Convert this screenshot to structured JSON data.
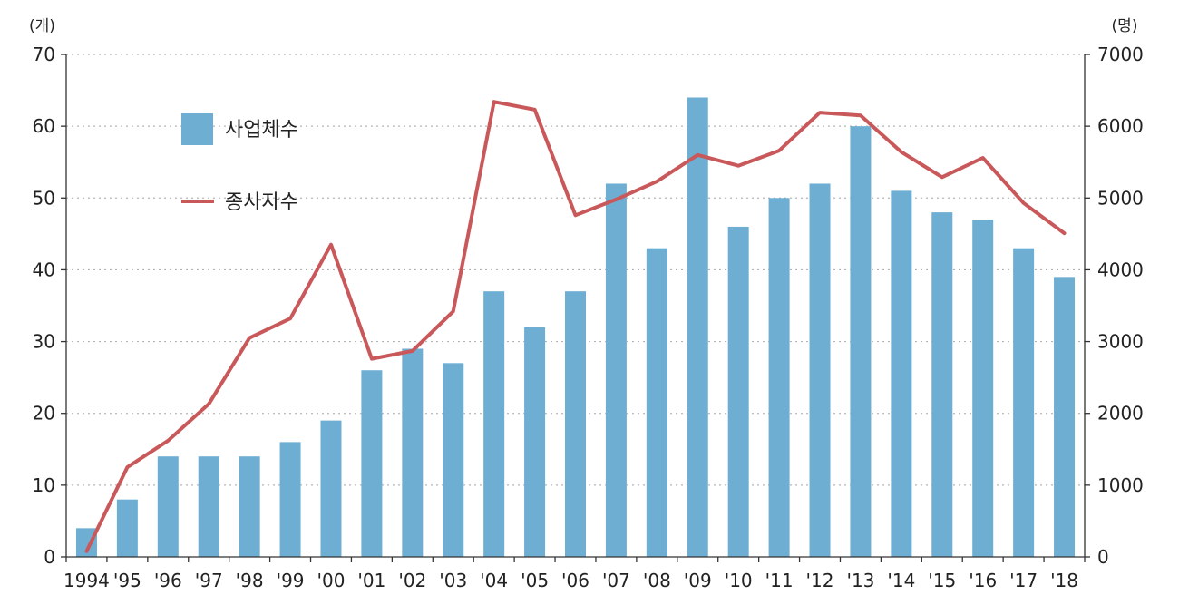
{
  "chart_data": {
    "type": "bar",
    "categories": [
      "1994",
      "'95",
      "'96",
      "'97",
      "'98",
      "'99",
      "'00",
      "'01",
      "'02",
      "'03",
      "'04",
      "'05",
      "'06",
      "'07",
      "'08",
      "'09",
      "'10",
      "'11",
      "'12",
      "'13",
      "'14",
      "'15",
      "'16",
      "'17",
      "'18"
    ],
    "series": [
      {
        "name": "사업체수",
        "type": "bar",
        "axis": "left",
        "color": "#6eaed3",
        "values": [
          4,
          8,
          14,
          14,
          14,
          16,
          19,
          26,
          29,
          27,
          37,
          32,
          37,
          52,
          43,
          64,
          46,
          50,
          52,
          60,
          51,
          48,
          47,
          43,
          39
        ]
      },
      {
        "name": "종사자수",
        "type": "line",
        "axis": "right",
        "color": "#c9585a",
        "values": [
          80,
          1250,
          1620,
          2130,
          3050,
          3320,
          4350,
          2760,
          2870,
          3420,
          6340,
          6230,
          4760,
          4980,
          5230,
          5600,
          5450,
          5660,
          6190,
          6150,
          5640,
          5290,
          5560,
          4930,
          4510
        ]
      }
    ],
    "y_left": {
      "unit": "(개)",
      "ylim": [
        0,
        70
      ],
      "ticks": [
        "0",
        "10",
        "20",
        "30",
        "40",
        "50",
        "60",
        "70"
      ]
    },
    "y_right": {
      "unit": "(명)",
      "ylim": [
        0,
        7000
      ],
      "ticks": [
        "0",
        "1000",
        "2000",
        "3000",
        "4000",
        "5000",
        "6000",
        "7000"
      ]
    },
    "grid": "horizontal-dotted",
    "legend": {
      "position": "top-left"
    }
  }
}
